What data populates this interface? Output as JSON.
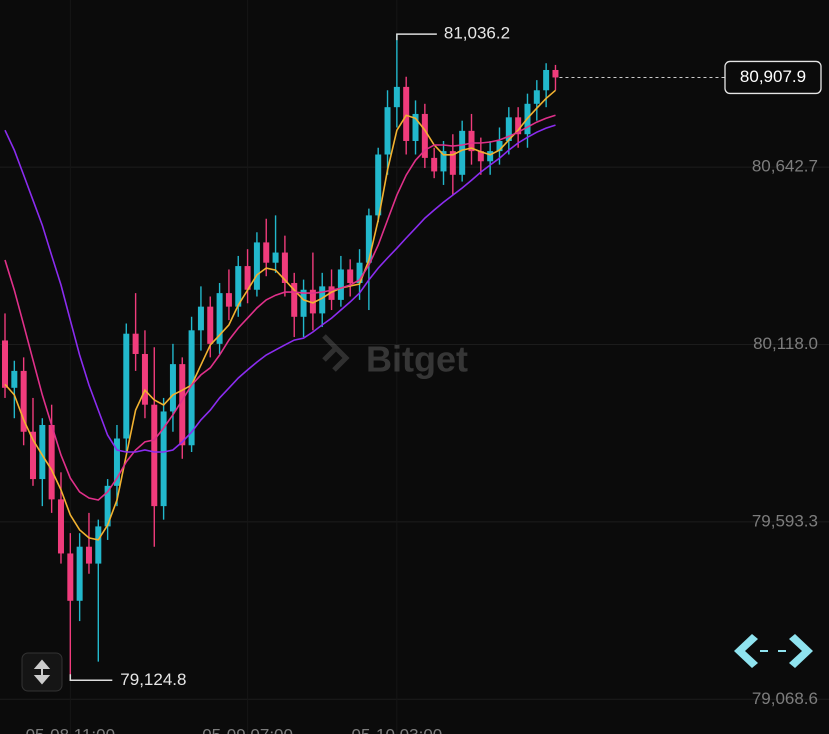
{
  "chart_data": {
    "type": "candlestick",
    "watermark": "Bitget",
    "categories": [
      null,
      null,
      null,
      null,
      null,
      null,
      null,
      "05-08 11:00",
      null,
      null,
      null,
      null,
      null,
      null,
      null,
      null,
      null,
      null,
      null,
      null,
      null,
      null,
      null,
      null,
      null,
      null,
      "05-09 07:00",
      null,
      null,
      null,
      null,
      null,
      null,
      null,
      null,
      null,
      null,
      null,
      null,
      null,
      null,
      null,
      "05-10 03:00",
      null,
      null,
      null,
      null,
      null,
      null,
      null,
      null,
      null,
      null,
      null,
      null,
      null,
      null,
      null,
      null,
      null
    ],
    "open": [
      80130,
      79990,
      80040,
      79860,
      79720,
      79880,
      79660,
      79500,
      79360,
      79520,
      79470,
      79580,
      79700,
      79840,
      80150,
      80090,
      79940,
      79640,
      79920,
      80060,
      79820,
      80160,
      80230,
      80120,
      80270,
      80230,
      80350,
      80280,
      80420,
      80360,
      80390,
      80300,
      80200,
      80280,
      80210,
      80290,
      80250,
      80340,
      80300,
      80360,
      80500,
      80680,
      80820,
      80880,
      80720,
      80800,
      80670,
      80630,
      80690,
      80620,
      80750,
      80690,
      80660,
      80690,
      80720,
      80790,
      80740,
      80830,
      80870,
      80930
    ],
    "high": [
      80210,
      80070,
      80080,
      79960,
      79900,
      79940,
      79740,
      79560,
      79560,
      79620,
      79600,
      79720,
      79880,
      80180,
      80270,
      80160,
      80110,
      79960,
      80120,
      80080,
      80200,
      80290,
      80260,
      80300,
      80340,
      80380,
      80400,
      80450,
      80490,
      80500,
      80440,
      80330,
      80310,
      80390,
      80330,
      80340,
      80380,
      80370,
      80400,
      80520,
      80700,
      80870,
      81036.2,
      80910,
      80840,
      80830,
      80700,
      80720,
      80740,
      80780,
      80800,
      80730,
      80720,
      80760,
      80820,
      80820,
      80860,
      80900,
      80950,
      80945
    ],
    "low": [
      79960,
      79900,
      79820,
      79700,
      79640,
      79620,
      79470,
      79124.8,
      79300,
      79440,
      79180,
      79540,
      79640,
      79800,
      80040,
      79900,
      79520,
      79600,
      79860,
      79780,
      79800,
      80100,
      80080,
      80090,
      80190,
      80200,
      80240,
      80260,
      80320,
      80330,
      80260,
      80140,
      80140,
      80160,
      80170,
      80220,
      80230,
      80260,
      80250,
      80220,
      80480,
      80620,
      80760,
      80680,
      80680,
      80640,
      80610,
      80590,
      80560,
      80600,
      80650,
      80620,
      80620,
      80650,
      80680,
      80700,
      80700,
      80780,
      80820,
      80870
    ],
    "close": [
      79990,
      80040,
      79860,
      79720,
      79880,
      79660,
      79500,
      79360,
      79520,
      79470,
      79580,
      79700,
      79840,
      80150,
      80090,
      79940,
      79640,
      79920,
      80060,
      79820,
      80160,
      80230,
      80120,
      80270,
      80230,
      80350,
      80280,
      80420,
      80360,
      80390,
      80300,
      80200,
      80280,
      80210,
      80290,
      80250,
      80340,
      80300,
      80360,
      80500,
      80680,
      80820,
      80880,
      80720,
      80800,
      80670,
      80630,
      80690,
      80620,
      80750,
      80690,
      80660,
      80690,
      80720,
      80790,
      80740,
      80830,
      80870,
      80930,
      80907.9
    ],
    "up_color": "#22b8cc",
    "down_color": "#f03c7c",
    "lines": [
      {
        "color": "#f2b230",
        "values": [
          80000,
          79969,
          79895,
          79836,
          79791,
          79747,
          79688,
          79614,
          79570,
          79546,
          79540,
          79584,
          79658,
          79791,
          79924,
          79983,
          79954,
          79939,
          79969,
          79983,
          79998,
          80057,
          80117,
          80146,
          80176,
          80235,
          80279,
          80324,
          80344,
          80338,
          80309,
          80279,
          80250,
          80241,
          80255,
          80273,
          80285,
          80291,
          80297,
          80368,
          80486,
          80634,
          80752,
          80796,
          80787,
          80752,
          80708,
          80679,
          80679,
          80693,
          80699,
          80688,
          80679,
          80693,
          80723,
          80752,
          80787,
          80817,
          80846,
          80870
        ]
      },
      {
        "color": "#e0308a",
        "values": [
          80368,
          80279,
          80176,
          80072,
          79969,
          79880,
          79791,
          79723,
          79682,
          79664,
          79658,
          79682,
          79723,
          79771,
          79806,
          79830,
          79836,
          79871,
          79910,
          79954,
          79998,
          80028,
          80049,
          80087,
          80131,
          80167,
          80196,
          80226,
          80250,
          80264,
          80273,
          80273,
          80270,
          80270,
          80273,
          80279,
          80285,
          80294,
          80309,
          80353,
          80412,
          80486,
          80560,
          80619,
          80663,
          80693,
          80708,
          80708,
          80705,
          80708,
          80714,
          80714,
          80717,
          80723,
          80734,
          80746,
          80761,
          80776,
          80787,
          80796
        ]
      },
      {
        "color": "#8b2cf0",
        "values": [
          80752,
          80693,
          80619,
          80545,
          80471,
          80382,
          80294,
          80190,
          80087,
          79998,
          79924,
          79850,
          79806,
          79800,
          79800,
          79806,
          79800,
          79800,
          79806,
          79830,
          79859,
          79895,
          79924,
          79960,
          79989,
          80019,
          80043,
          80066,
          80087,
          80102,
          80117,
          80131,
          80137,
          80155,
          80176,
          80196,
          80220,
          80244,
          80270,
          80309,
          80344,
          80374,
          80403,
          80433,
          80462,
          80492,
          80516,
          80539,
          80560,
          80581,
          80604,
          80628,
          80649,
          80669,
          80693,
          80714,
          80731,
          80746,
          80758,
          80767
        ]
      }
    ],
    "ylim": [
      78966,
      81137
    ],
    "yticks": [
      {
        "value": 80642.7,
        "label": "80,642.7"
      },
      {
        "value": 80118.0,
        "label": "80,118.0"
      },
      {
        "value": 79593.3,
        "label": "79,593.3"
      },
      {
        "value": 79068.6,
        "label": "79,068.6"
      }
    ],
    "grid": true,
    "annotations": {
      "high": {
        "value": 81036.2,
        "label": "81,036.2"
      },
      "low": {
        "value": 79124.8,
        "label": "79,124.8"
      },
      "last": {
        "value": 80907.9,
        "label": "80,907.9"
      }
    }
  }
}
